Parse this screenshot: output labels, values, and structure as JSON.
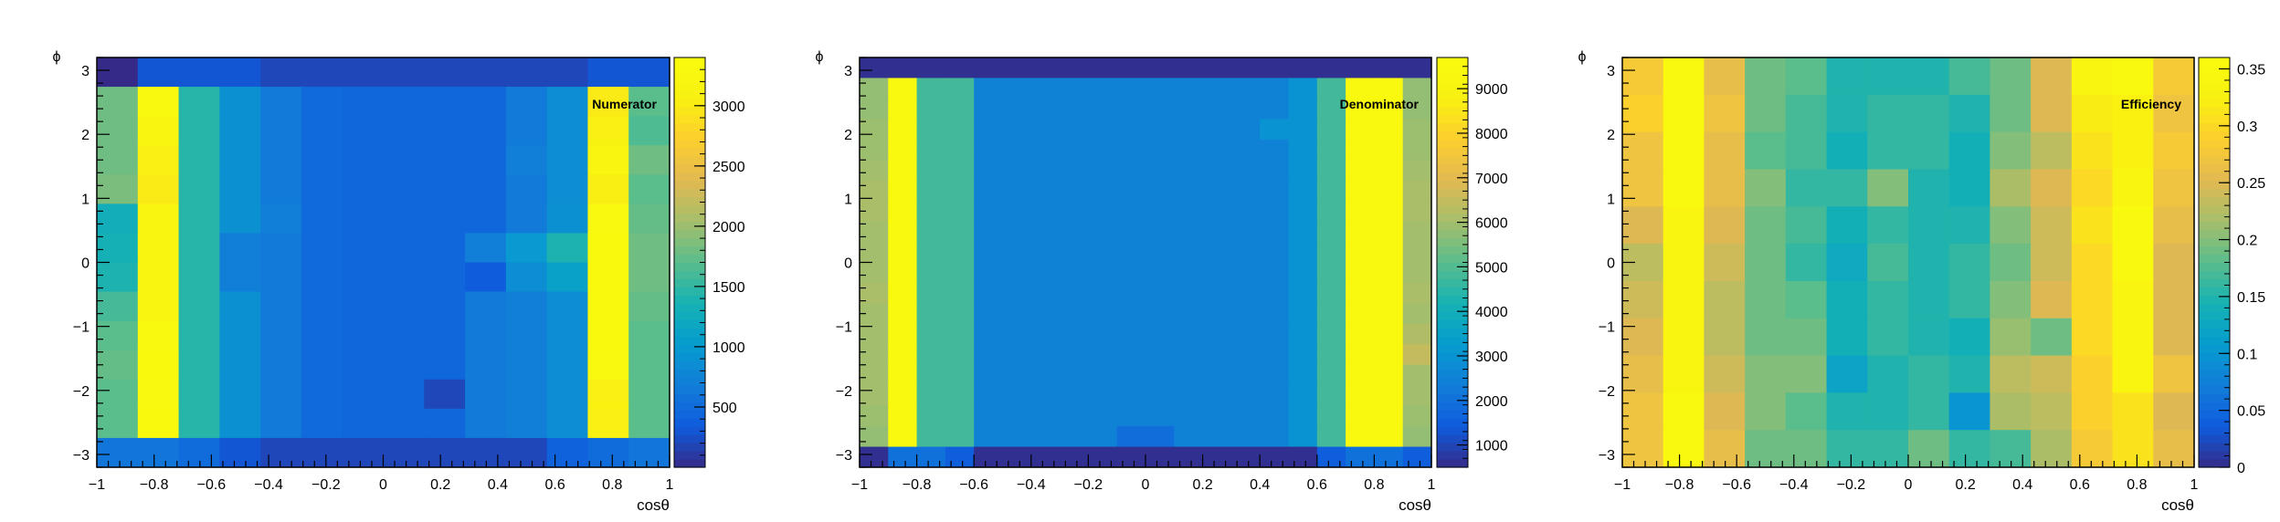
{
  "chart_data": [
    {
      "type": "heatmap",
      "title": "Numerator",
      "xlabel": "cosθ",
      "ylabel": "ϕ",
      "xlim": [
        -1,
        1
      ],
      "ylim": [
        -3.2,
        3.2
      ],
      "zlim": [
        0,
        3400
      ],
      "x_bins": 14,
      "y_bins": 14,
      "x_ticks": [
        "−1",
        "−0.8",
        "−0.6",
        "−0.4",
        "−0.2",
        "0",
        "0.2",
        "0.4",
        "0.6",
        "0.8",
        "1"
      ],
      "y_ticks": [
        "−3",
        "−2",
        "−1",
        "0",
        "1",
        "2",
        "3"
      ],
      "z_ticks": [
        {
          "v": 500,
          "label": "500"
        },
        {
          "v": 1000,
          "label": "1000"
        },
        {
          "v": 1500,
          "label": "1500"
        },
        {
          "v": 2000,
          "label": "2000"
        },
        {
          "v": 2500,
          "label": "2500"
        },
        {
          "v": 3000,
          "label": "3000"
        }
      ],
      "z": [
        [
          0,
          300,
          300,
          300,
          200,
          200,
          200,
          200,
          200,
          200,
          200,
          200,
          300,
          300
        ],
        [
          1800,
          3300,
          1450,
          900,
          650,
          480,
          450,
          450,
          450,
          450,
          650,
          850,
          3000,
          1700
        ],
        [
          1800,
          3200,
          1450,
          900,
          650,
          480,
          450,
          450,
          450,
          450,
          650,
          850,
          3100,
          1650
        ],
        [
          1800,
          3100,
          1450,
          900,
          650,
          480,
          450,
          450,
          450,
          450,
          700,
          850,
          3200,
          1800
        ],
        [
          1850,
          3000,
          1450,
          900,
          650,
          480,
          450,
          450,
          450,
          450,
          650,
          850,
          3050,
          1700
        ],
        [
          1300,
          3200,
          1450,
          900,
          700,
          480,
          450,
          450,
          450,
          450,
          650,
          900,
          3300,
          1750
        ],
        [
          1350,
          3200,
          1450,
          700,
          650,
          480,
          450,
          450,
          450,
          700,
          1000,
          1400,
          3350,
          1800
        ],
        [
          1400,
          3200,
          1450,
          700,
          650,
          480,
          450,
          450,
          450,
          350,
          850,
          1100,
          3350,
          1800
        ],
        [
          1600,
          3200,
          1450,
          900,
          650,
          480,
          450,
          450,
          450,
          650,
          700,
          850,
          3350,
          1750
        ],
        [
          1700,
          3300,
          1450,
          900,
          650,
          480,
          450,
          450,
          450,
          650,
          700,
          850,
          3350,
          1700
        ],
        [
          1750,
          3350,
          1450,
          900,
          650,
          480,
          450,
          450,
          450,
          650,
          700,
          850,
          3300,
          1700
        ],
        [
          1700,
          3300,
          1450,
          900,
          650,
          480,
          450,
          450,
          200,
          650,
          700,
          850,
          3100,
          1700
        ],
        [
          1700,
          3350,
          1450,
          900,
          650,
          480,
          450,
          450,
          450,
          650,
          700,
          850,
          3100,
          1700
        ],
        [
          600,
          600,
          500,
          300,
          200,
          200,
          200,
          200,
          200,
          200,
          200,
          400,
          500,
          600
        ]
      ]
    },
    {
      "type": "heatmap",
      "title": "Denominator",
      "xlabel": "cosθ",
      "ylabel": "ϕ",
      "xlim": [
        -1,
        1
      ],
      "ylim": [
        -3.2,
        3.2
      ],
      "zlim": [
        500,
        9700
      ],
      "x_bins": 20,
      "y_bins": 20,
      "x_ticks": [
        "−1",
        "−0.8",
        "−0.6",
        "−0.4",
        "−0.2",
        "0",
        "0.2",
        "0.4",
        "0.6",
        "0.8",
        "1"
      ],
      "y_ticks": [
        "−3",
        "−2",
        "−1",
        "0",
        "1",
        "2",
        "3"
      ],
      "z_ticks": [
        {
          "v": 1000,
          "label": "1000"
        },
        {
          "v": 2000,
          "label": "2000"
        },
        {
          "v": 3000,
          "label": "3000"
        },
        {
          "v": 4000,
          "label": "4000"
        },
        {
          "v": 5000,
          "label": "5000"
        },
        {
          "v": 6000,
          "label": "6000"
        },
        {
          "v": 7000,
          "label": "7000"
        },
        {
          "v": 8000,
          "label": "8000"
        },
        {
          "v": 9000,
          "label": "9000"
        }
      ],
      "z": [
        [
          600,
          600,
          600,
          600,
          600,
          600,
          600,
          600,
          600,
          600,
          600,
          600,
          600,
          600,
          600,
          600,
          600,
          600,
          600,
          600
        ],
        [
          5800,
          9500,
          4800,
          4800,
          2500,
          2500,
          2500,
          2500,
          2500,
          2500,
          2500,
          2500,
          2500,
          2500,
          2500,
          3000,
          4800,
          9500,
          9500,
          5800
        ],
        [
          5800,
          9500,
          4800,
          4800,
          2500,
          2500,
          2500,
          2500,
          2500,
          2500,
          2500,
          2500,
          2500,
          2500,
          2500,
          3000,
          4800,
          9500,
          9500,
          5800
        ],
        [
          5900,
          9500,
          4800,
          4800,
          2500,
          2500,
          2500,
          2500,
          2500,
          2500,
          2500,
          2500,
          2500,
          2500,
          3000,
          3000,
          4800,
          9500,
          9500,
          5900
        ],
        [
          5900,
          9500,
          4800,
          4800,
          2500,
          2500,
          2500,
          2500,
          2500,
          2500,
          2500,
          2500,
          2500,
          2500,
          2500,
          3000,
          4800,
          9500,
          9500,
          5900
        ],
        [
          6000,
          9500,
          4800,
          4800,
          2500,
          2500,
          2500,
          2500,
          2500,
          2500,
          2500,
          2500,
          2500,
          2500,
          2500,
          3000,
          4800,
          9500,
          9500,
          6000
        ],
        [
          6100,
          9500,
          4800,
          4800,
          2500,
          2500,
          2500,
          2500,
          2500,
          2500,
          2500,
          2500,
          2500,
          2500,
          2500,
          3000,
          4800,
          9500,
          9500,
          6100
        ],
        [
          6100,
          9500,
          4800,
          4800,
          2500,
          2500,
          2500,
          2500,
          2500,
          2500,
          2500,
          2500,
          2500,
          2500,
          2500,
          3000,
          4800,
          9500,
          9500,
          6100
        ],
        [
          6000,
          9500,
          4800,
          4800,
          2500,
          2500,
          2500,
          2500,
          2500,
          2500,
          2500,
          2500,
          2500,
          2500,
          2500,
          3000,
          4800,
          9500,
          9500,
          6000
        ],
        [
          6000,
          9500,
          4800,
          4800,
          2500,
          2500,
          2500,
          2500,
          2500,
          2500,
          2500,
          2500,
          2500,
          2500,
          2500,
          3000,
          4800,
          9500,
          9500,
          6000
        ],
        [
          6000,
          9500,
          4800,
          4800,
          2500,
          2500,
          2500,
          2500,
          2500,
          2500,
          2500,
          2500,
          2500,
          2500,
          2500,
          3000,
          4800,
          9500,
          9500,
          6000
        ],
        [
          6100,
          9500,
          4800,
          4800,
          2500,
          2500,
          2500,
          2500,
          2500,
          2500,
          2500,
          2500,
          2500,
          2500,
          2500,
          3000,
          4800,
          9500,
          9500,
          6100
        ],
        [
          6000,
          9500,
          4800,
          4800,
          2500,
          2500,
          2500,
          2500,
          2500,
          2500,
          2500,
          2500,
          2500,
          2500,
          2500,
          3000,
          4800,
          9500,
          9500,
          6000
        ],
        [
          6000,
          9500,
          4800,
          4800,
          2500,
          2500,
          2500,
          2500,
          2500,
          2500,
          2500,
          2500,
          2500,
          2500,
          2500,
          3000,
          4800,
          9500,
          9500,
          6200
        ],
        [
          6000,
          9500,
          4800,
          4800,
          2500,
          2500,
          2500,
          2500,
          2500,
          2500,
          2500,
          2500,
          2500,
          2500,
          2500,
          3000,
          4800,
          9500,
          9500,
          6500
        ],
        [
          6000,
          9500,
          4800,
          4800,
          2500,
          2500,
          2500,
          2500,
          2500,
          2500,
          2500,
          2500,
          2500,
          2500,
          2500,
          3000,
          4800,
          9500,
          9500,
          6000
        ],
        [
          6000,
          9500,
          4800,
          4800,
          2500,
          2500,
          2500,
          2500,
          2500,
          2500,
          2500,
          2500,
          2500,
          2500,
          2500,
          3000,
          4800,
          9500,
          9500,
          6000
        ],
        [
          5900,
          9500,
          4800,
          4800,
          2500,
          2500,
          2500,
          2500,
          2500,
          2500,
          2500,
          2500,
          2500,
          2500,
          2500,
          3000,
          4800,
          9500,
          9500,
          5900
        ],
        [
          5800,
          9500,
          4800,
          4800,
          2500,
          2500,
          2500,
          2500,
          2500,
          1900,
          1900,
          2500,
          2500,
          2500,
          2500,
          3000,
          4800,
          9500,
          9500,
          5800
        ],
        [
          600,
          2000,
          2000,
          1500,
          600,
          600,
          600,
          600,
          600,
          600,
          600,
          600,
          600,
          600,
          600,
          600,
          1500,
          2000,
          2000,
          1500
        ]
      ]
    },
    {
      "type": "heatmap",
      "title": "Efficiency",
      "xlabel": "cosθ",
      "ylabel": "ϕ",
      "xlim": [
        -1,
        1
      ],
      "ylim": [
        -3.2,
        3.2
      ],
      "zlim": [
        0,
        0.36
      ],
      "x_bins": 14,
      "y_bins": 11,
      "x_ticks": [
        "−1",
        "−0.8",
        "−0.6",
        "−0.4",
        "−0.2",
        "0",
        "0.2",
        "0.4",
        "0.6",
        "0.8",
        "1"
      ],
      "y_ticks": [
        "−3",
        "−2",
        "−1",
        "0",
        "1",
        "2",
        "3"
      ],
      "z_ticks": [
        {
          "v": 0,
          "label": "0"
        },
        {
          "v": 0.05,
          "label": "0.05"
        },
        {
          "v": 0.1,
          "label": "0.1"
        },
        {
          "v": 0.15,
          "label": "0.15"
        },
        {
          "v": 0.2,
          "label": "0.2"
        },
        {
          "v": 0.25,
          "label": "0.25"
        },
        {
          "v": 0.3,
          "label": "0.3"
        },
        {
          "v": 0.35,
          "label": "0.35"
        }
      ],
      "z": [
        [
          0.28,
          0.35,
          0.26,
          0.19,
          0.18,
          0.15,
          0.15,
          0.15,
          0.17,
          0.19,
          0.25,
          0.34,
          0.35,
          0.28
        ],
        [
          0.29,
          0.35,
          0.27,
          0.19,
          0.17,
          0.15,
          0.16,
          0.16,
          0.15,
          0.19,
          0.25,
          0.32,
          0.33,
          0.27
        ],
        [
          0.27,
          0.35,
          0.26,
          0.18,
          0.17,
          0.14,
          0.16,
          0.16,
          0.14,
          0.2,
          0.23,
          0.31,
          0.33,
          0.28
        ],
        [
          0.27,
          0.35,
          0.26,
          0.2,
          0.16,
          0.16,
          0.2,
          0.15,
          0.14,
          0.22,
          0.25,
          0.3,
          0.34,
          0.27
        ],
        [
          0.25,
          0.34,
          0.25,
          0.19,
          0.17,
          0.14,
          0.16,
          0.15,
          0.15,
          0.2,
          0.24,
          0.31,
          0.35,
          0.26
        ],
        [
          0.23,
          0.34,
          0.24,
          0.19,
          0.16,
          0.13,
          0.17,
          0.15,
          0.16,
          0.19,
          0.24,
          0.3,
          0.35,
          0.25
        ],
        [
          0.24,
          0.34,
          0.23,
          0.19,
          0.18,
          0.14,
          0.16,
          0.15,
          0.16,
          0.2,
          0.25,
          0.3,
          0.34,
          0.25
        ],
        [
          0.25,
          0.34,
          0.23,
          0.19,
          0.19,
          0.14,
          0.16,
          0.15,
          0.14,
          0.21,
          0.19,
          0.3,
          0.34,
          0.25
        ],
        [
          0.26,
          0.34,
          0.24,
          0.2,
          0.2,
          0.12,
          0.15,
          0.16,
          0.15,
          0.23,
          0.24,
          0.29,
          0.34,
          0.27
        ],
        [
          0.27,
          0.35,
          0.25,
          0.2,
          0.18,
          0.15,
          0.15,
          0.16,
          0.1,
          0.22,
          0.23,
          0.29,
          0.31,
          0.25
        ],
        [
          0.27,
          0.35,
          0.26,
          0.19,
          0.19,
          0.16,
          0.16,
          0.19,
          0.16,
          0.17,
          0.22,
          0.28,
          0.31,
          0.26
        ]
      ]
    }
  ]
}
